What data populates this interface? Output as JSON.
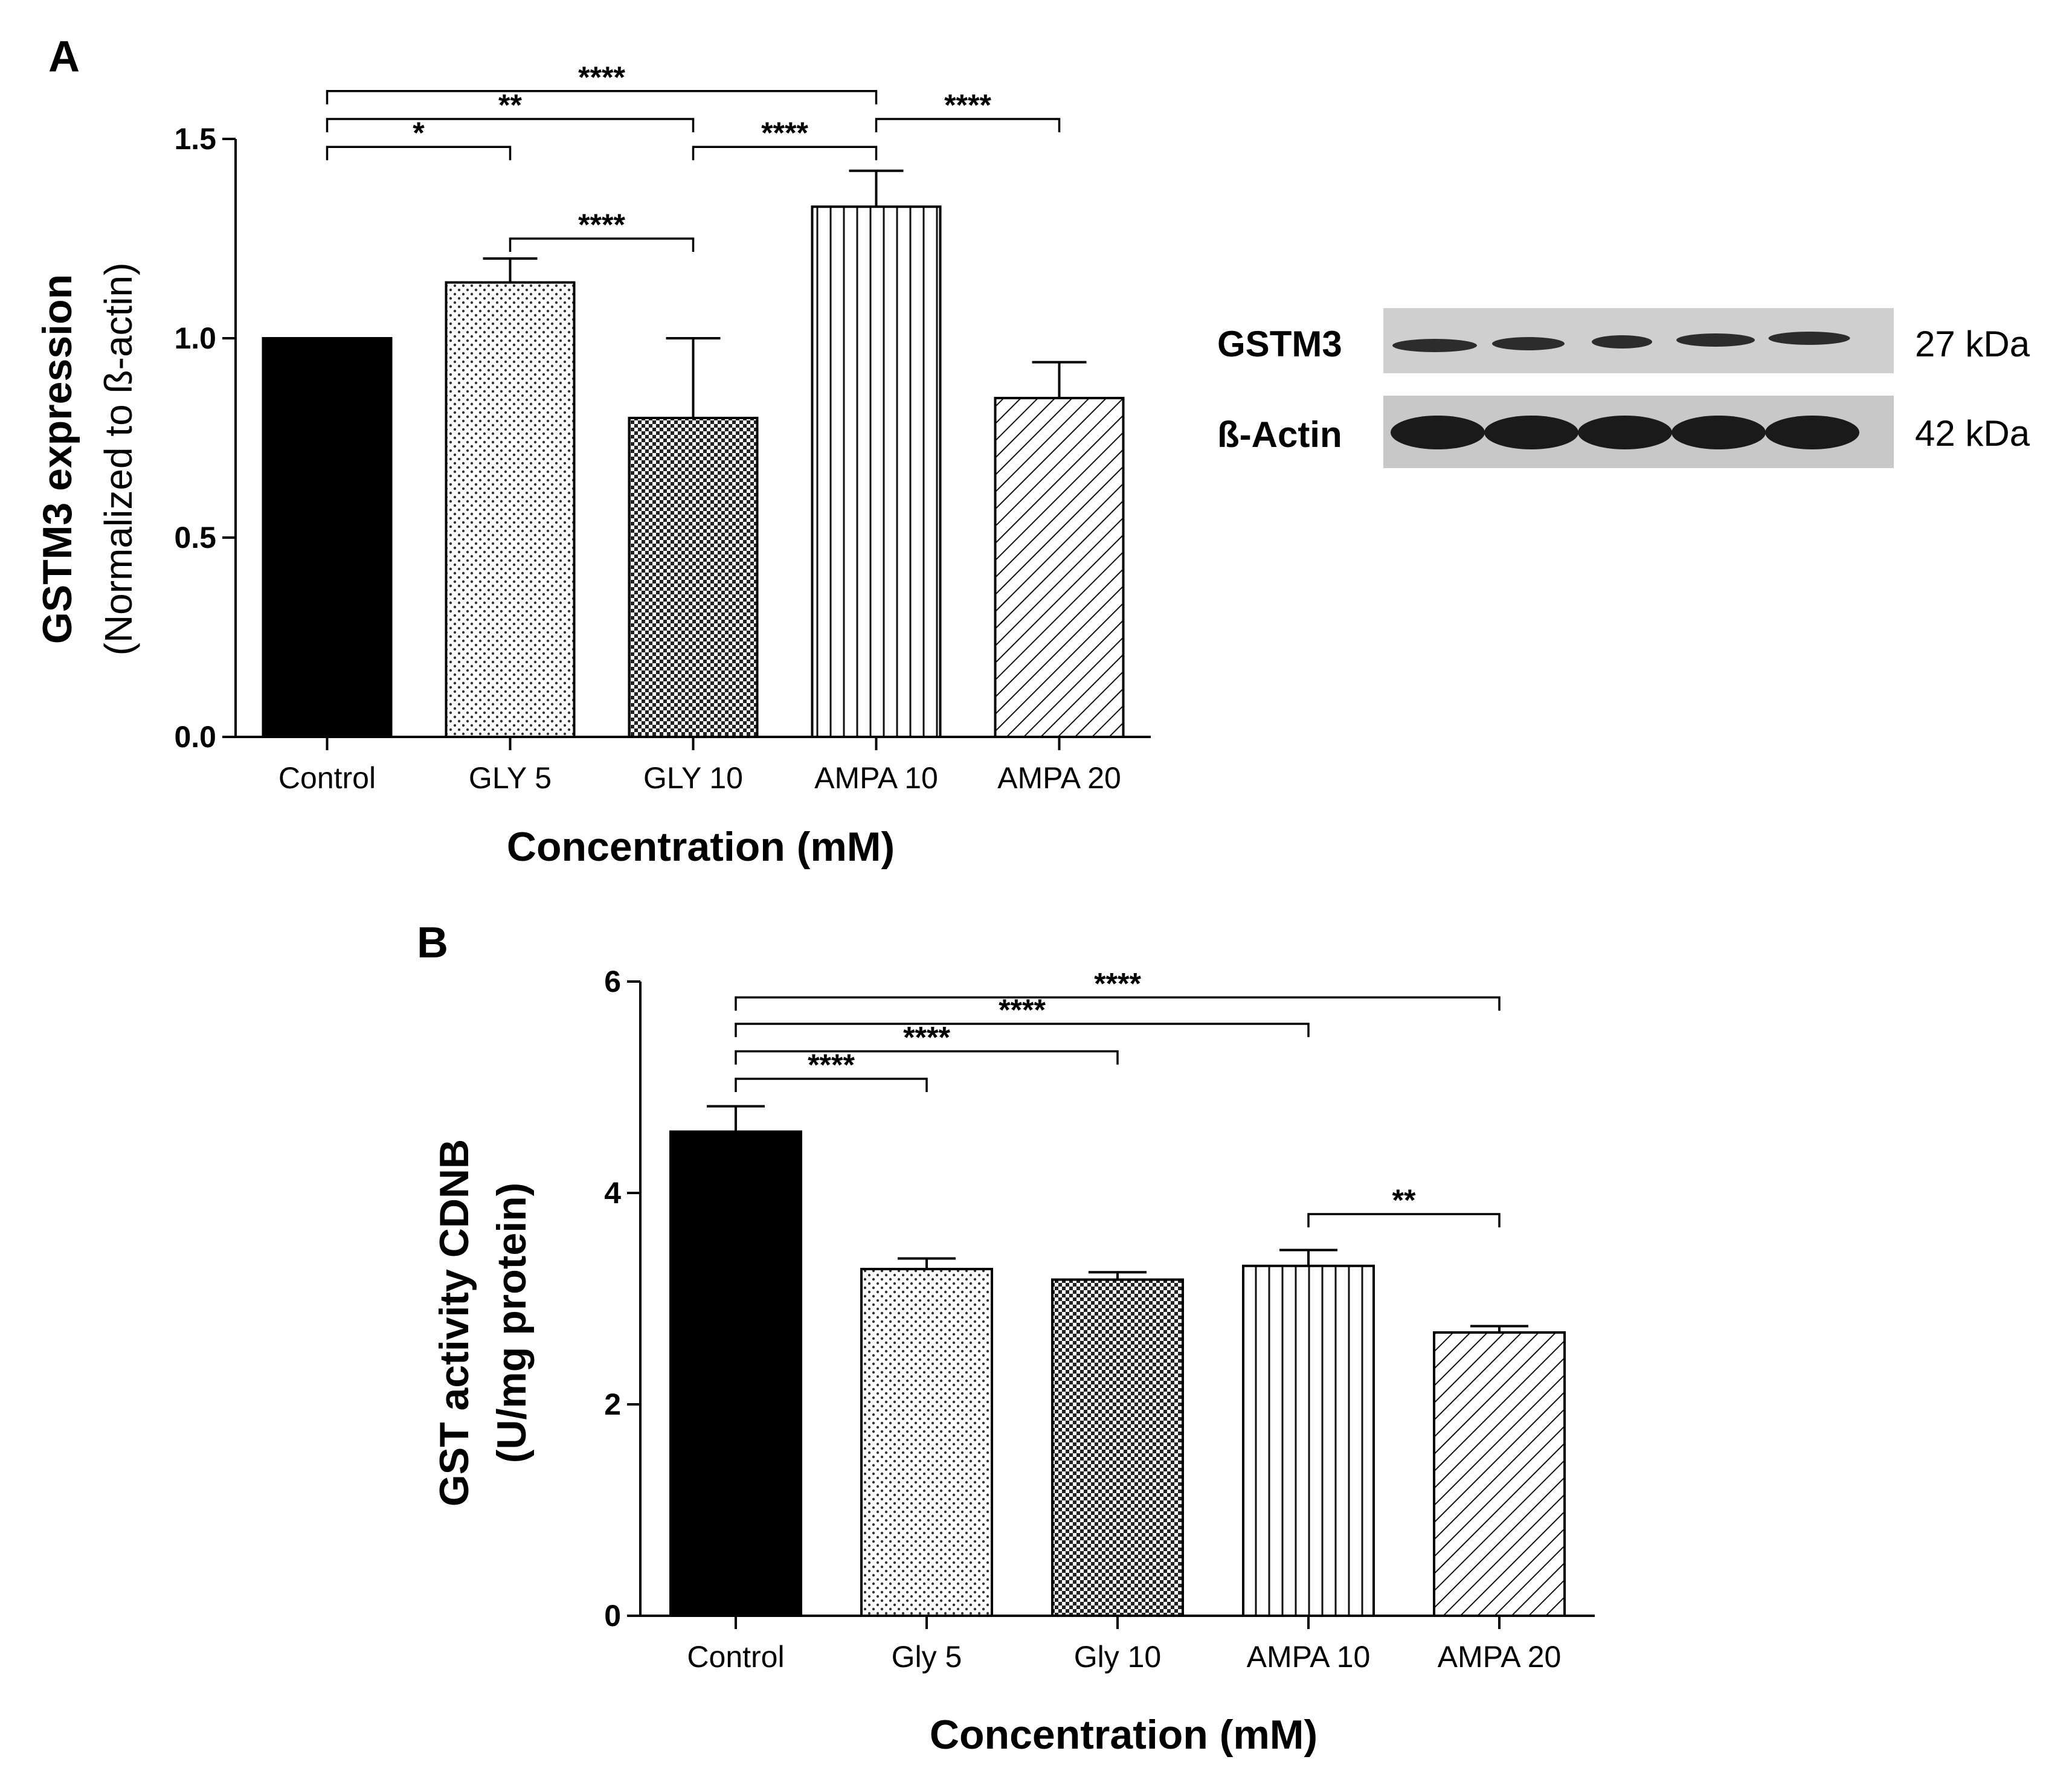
{
  "chart_data": [
    {
      "type": "bar",
      "panel": "A",
      "title": "",
      "categories": [
        "Control",
        "GLY 5",
        "GLY 10",
        "AMPA 10",
        "AMPA 20"
      ],
      "values": [
        1.0,
        1.14,
        0.8,
        1.33,
        0.85
      ],
      "errors": [
        0.0,
        0.06,
        0.2,
        0.09,
        0.09
      ],
      "patterns": [
        "solid",
        "dots",
        "checker",
        "vertical",
        "diagonal"
      ],
      "xlabel": "Concentration (mM)",
      "ylabel": "GSTM3 expression",
      "ylabel_sub": "(Normalized to ß-actin)",
      "ylim": [
        0,
        1.5
      ],
      "yticks": [
        "0.0",
        "0.5",
        "1.0",
        "1.5"
      ],
      "ytick_values": [
        0,
        0.5,
        1.0,
        1.5
      ],
      "significance": [
        {
          "from": 0,
          "to": 3,
          "label": "****",
          "level": 1.62
        },
        {
          "from": 0,
          "to": 2,
          "label": "**",
          "level": 1.55
        },
        {
          "from": 0,
          "to": 1,
          "label": "*",
          "level": 1.48
        },
        {
          "from": 3,
          "to": 4,
          "label": "****",
          "level": 1.55
        },
        {
          "from": 2,
          "to": 3,
          "label": "****",
          "level": 1.48
        },
        {
          "from": 1,
          "to": 2,
          "label": "****",
          "level": 1.25
        }
      ]
    },
    {
      "type": "bar",
      "panel": "B",
      "title": "",
      "categories": [
        "Control",
        "Gly 5",
        "Gly 10",
        "AMPA 10",
        "AMPA 20"
      ],
      "values": [
        4.58,
        3.28,
        3.18,
        3.31,
        2.68
      ],
      "errors": [
        0.24,
        0.1,
        0.07,
        0.15,
        0.06
      ],
      "patterns": [
        "solid",
        "dots",
        "checker",
        "vertical",
        "diagonal"
      ],
      "xlabel": "Concentration (mM)",
      "ylabel": "GST activity CDNB",
      "ylabel_sub": "(U/mg protein)",
      "ylim": [
        0,
        6
      ],
      "yticks": [
        "0",
        "2",
        "4",
        "6"
      ],
      "ytick_values": [
        0,
        2,
        4,
        6
      ],
      "significance": [
        {
          "from": 0,
          "to": 4,
          "label": "****",
          "level": 5.85
        },
        {
          "from": 0,
          "to": 3,
          "label": "****",
          "level": 5.6
        },
        {
          "from": 0,
          "to": 2,
          "label": "****",
          "level": 5.34
        },
        {
          "from": 0,
          "to": 1,
          "label": "****",
          "level": 5.08
        },
        {
          "from": 3,
          "to": 4,
          "label": "**",
          "level": 3.8
        }
      ]
    }
  ],
  "blot": {
    "rows": [
      {
        "label": "GSTM3",
        "size": "27 kDa"
      },
      {
        "label": "ß-Actin",
        "size": "42 kDa"
      }
    ],
    "lanes": 5
  },
  "colors": {
    "ink": "#000000",
    "blot_bg": "#cfcfcf",
    "band": "#1a1a1a"
  }
}
